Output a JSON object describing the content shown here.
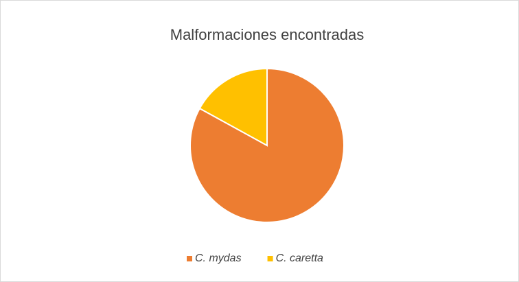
{
  "chart_data": {
    "type": "pie",
    "title": "Malformaciones encontradas",
    "categories": [
      "C. mydas",
      "C. caretta"
    ],
    "values": [
      83,
      17
    ],
    "colors": [
      "#ed7d31",
      "#ffc000"
    ],
    "legend": "bottom"
  }
}
